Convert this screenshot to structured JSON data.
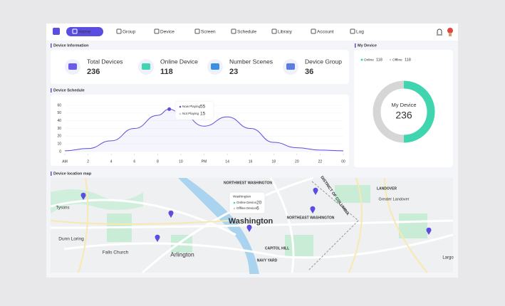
{
  "nav": {
    "items": [
      "Home",
      "Group",
      "Device",
      "Screen",
      "Schedule",
      "Library",
      "Account",
      "Log"
    ]
  },
  "device_info": {
    "title": "Device Information",
    "stats": [
      {
        "label": "Total Devices",
        "value": 236
      },
      {
        "label": "Online Device",
        "value": 118
      },
      {
        "label": "Number Scenes",
        "value": 23
      },
      {
        "label": "Device Group",
        "value": 36
      }
    ]
  },
  "schedule": {
    "title": "Device Schedule",
    "chart": {
      "type": "line",
      "color": "#5b4de0",
      "x": [
        0,
        2,
        4,
        6,
        8,
        9,
        10,
        12,
        14,
        16,
        18,
        20,
        22,
        24
      ],
      "values": [
        1,
        4,
        14,
        30,
        47,
        55,
        50,
        33,
        45,
        30,
        12,
        5,
        2,
        1
      ],
      "xlim": [
        0,
        24
      ],
      "xticks": [
        {
          "value": 0,
          "label": "AM"
        },
        2,
        4,
        6,
        8,
        10,
        {
          "value": 12,
          "label": "PM"
        },
        14,
        16,
        18,
        20,
        22,
        {
          "value": 24,
          "label": "00"
        }
      ],
      "ylim": [
        0,
        60
      ],
      "yticks": [
        0,
        10,
        20,
        30,
        40,
        50,
        60
      ],
      "tooltip": [
        {
          "label": "Now Playing",
          "value": 55
        },
        {
          "label": "Not Playing",
          "value": 15
        }
      ]
    }
  },
  "my_device": {
    "title": "My Device",
    "legend": [
      {
        "label": "Online",
        "value": 118,
        "color": "#3fd5ae"
      },
      {
        "label": "Offline",
        "value": 118,
        "color": "#d6d6d6"
      }
    ],
    "center_label": "My Device",
    "total": 236
  },
  "map": {
    "title": "Device location map",
    "labels": [
      "Washington",
      "Arlington",
      "Tysons",
      "Dunn Loring",
      "Falls Church",
      "NORTHWEST WASHINGTON",
      "NORTHEAST WASHINGTON",
      "CAPITOL HILL",
      "NAVY YARD",
      "LANDOVER",
      "Greater Landover",
      "DISTRICT OF COLUMBIA",
      "Largo"
    ],
    "tooltip": {
      "title": "Washington",
      "items": [
        {
          "label": "Online Device",
          "value": 20
        },
        {
          "label": "Offline Device",
          "value": 6
        }
      ]
    }
  }
}
